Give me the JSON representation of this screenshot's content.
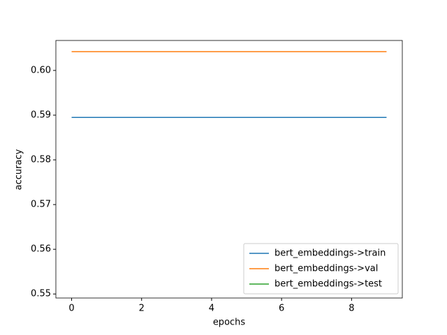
{
  "chart_data": {
    "type": "line",
    "xlabel": "epochs",
    "ylabel": "accuracy",
    "x": [
      0,
      1,
      2,
      3,
      4,
      5,
      6,
      7,
      8,
      9
    ],
    "series": [
      {
        "name": "bert_embeddings->train",
        "color": "#1f77b4",
        "values": [
          0.5895,
          0.5895,
          0.5895,
          0.5895,
          0.5895,
          0.5895,
          0.5895,
          0.5895,
          0.5895,
          0.5895
        ]
      },
      {
        "name": "bert_embeddings->val",
        "color": "#ff7f0e",
        "values": [
          0.6042,
          0.6042,
          0.6042,
          0.6042,
          0.6042,
          0.6042,
          0.6042,
          0.6042,
          0.6042,
          0.6042
        ]
      },
      {
        "name": "bert_embeddings->test",
        "color": "#2ca02c",
        "values": [
          null,
          null,
          null,
          null,
          null,
          null,
          null,
          null,
          null,
          null
        ]
      }
    ],
    "xlim": [
      -0.45,
      9.45
    ],
    "xticks": [
      0,
      2,
      4,
      6,
      8
    ],
    "ylim": [
      0.5491,
      0.6067
    ],
    "yticks": [
      {
        "value": 0.55,
        "label": "0.55"
      },
      0.56,
      0.57,
      0.58,
      0.59,
      {
        "value": 0.6,
        "label": "0.60"
      }
    ],
    "legend": "lower right"
  }
}
